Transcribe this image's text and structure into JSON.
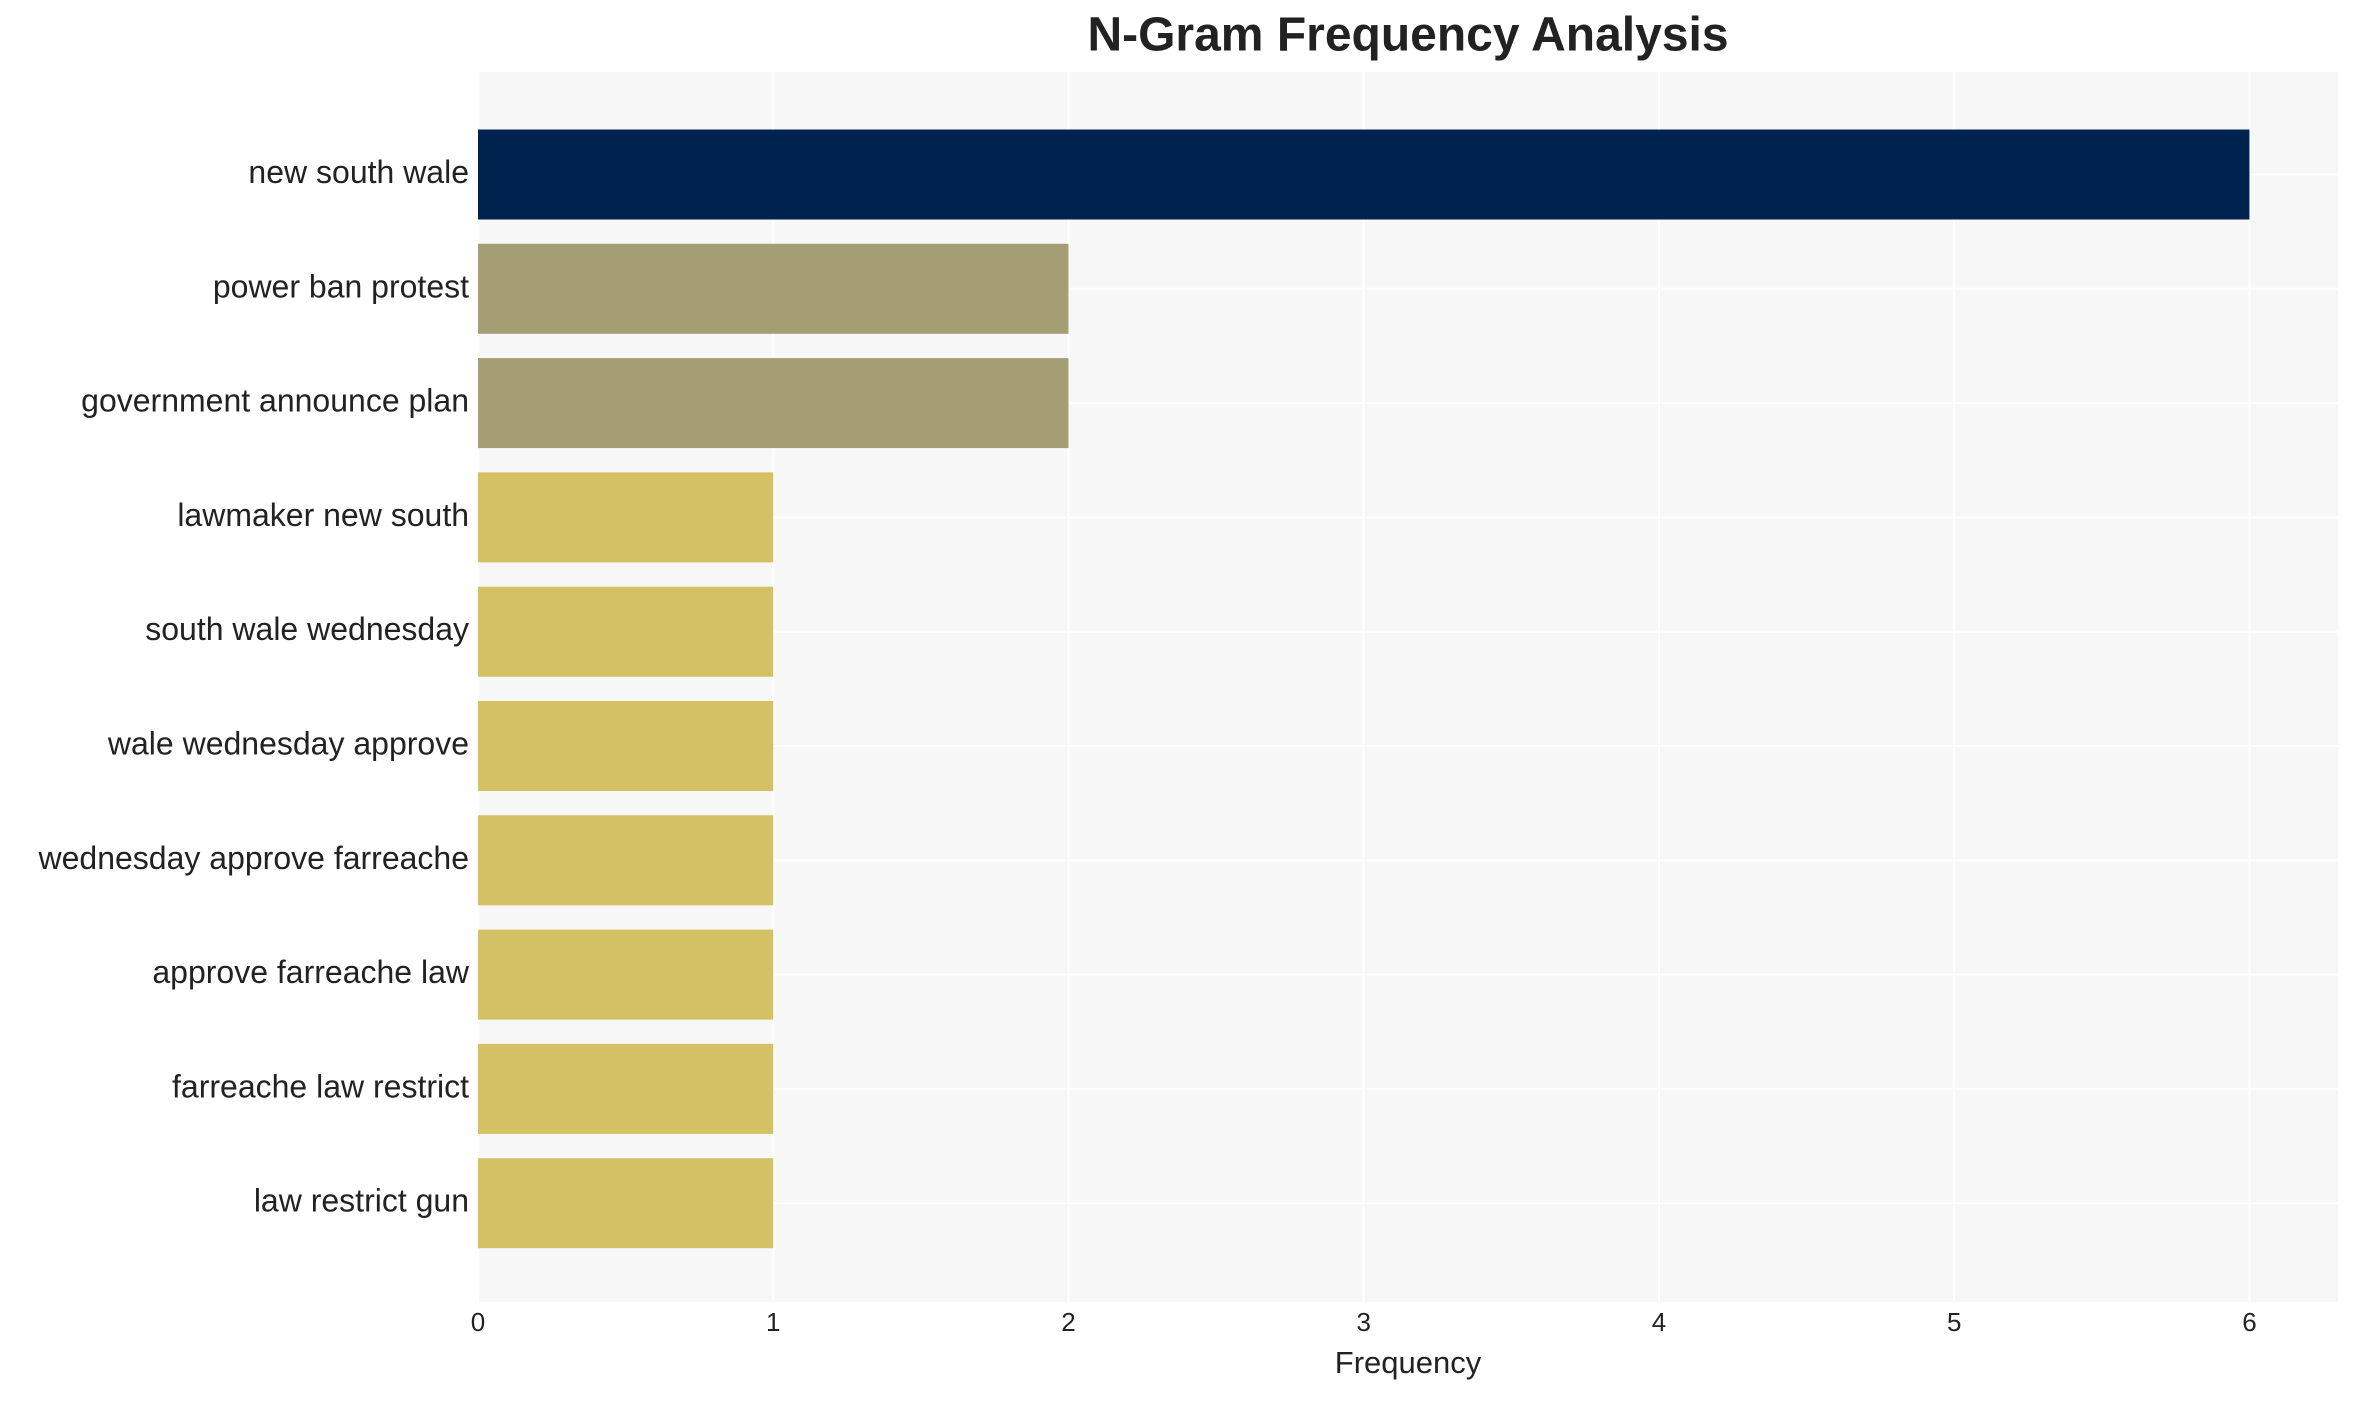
{
  "chart_data": {
    "type": "barh",
    "title": "N-Gram Frequency Analysis",
    "x_label": "Frequency",
    "categories": [
      "new south wale",
      "power ban protest",
      "government announce plan",
      "lawmaker new south",
      "south wale wednesday",
      "wale wednesday approve",
      "wednesday approve farreache",
      "approve farreache law",
      "farreache law restrict",
      "law restrict gun"
    ],
    "values": [
      6,
      2,
      2,
      1,
      1,
      1,
      1,
      1,
      1,
      1
    ],
    "colors": [
      "#00224e",
      "#a59d74",
      "#a59d74",
      "#d3c163",
      "#d3c163",
      "#d3c163",
      "#d3c163",
      "#d3c163",
      "#d3c163",
      "#d3c163"
    ],
    "xlim": [
      0,
      6.3
    ],
    "xticks": [
      0,
      1,
      2,
      3,
      4,
      5,
      6
    ],
    "grid": true
  }
}
